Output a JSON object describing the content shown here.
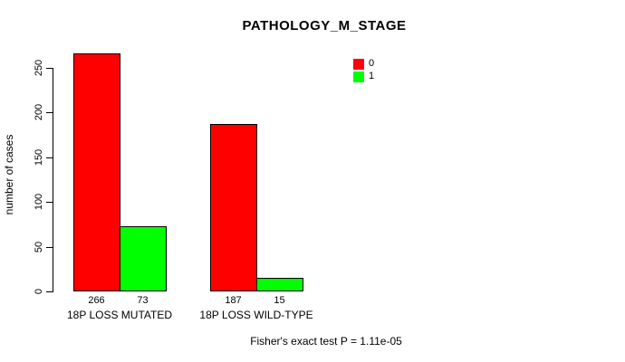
{
  "chart_data": {
    "type": "bar",
    "title": "PATHOLOGY_M_STAGE",
    "xlabel": "",
    "ylabel": "number of cases",
    "categories": [
      "18P LOSS MUTATED",
      "18P LOSS WILD-TYPE"
    ],
    "series": [
      {
        "name": "0",
        "color": "#ff0000",
        "values": [
          266,
          187
        ]
      },
      {
        "name": "1",
        "color": "#00ff00",
        "values": [
          73,
          15
        ]
      }
    ],
    "bar_value_labels": [
      [
        266,
        73
      ],
      [
        187,
        15
      ]
    ],
    "yticks": [
      0,
      50,
      100,
      150,
      200,
      250
    ],
    "ylim": [
      0,
      266
    ],
    "grid": false,
    "legend_position": "top-right",
    "legend_entries": [
      "0",
      "1"
    ],
    "footnote": "Fisher's exact test P = 1.11e-05",
    "colors": {
      "series_0": "#ff0000",
      "series_1": "#00ff00",
      "axis": "#000000",
      "background": "#ffffff"
    }
  }
}
